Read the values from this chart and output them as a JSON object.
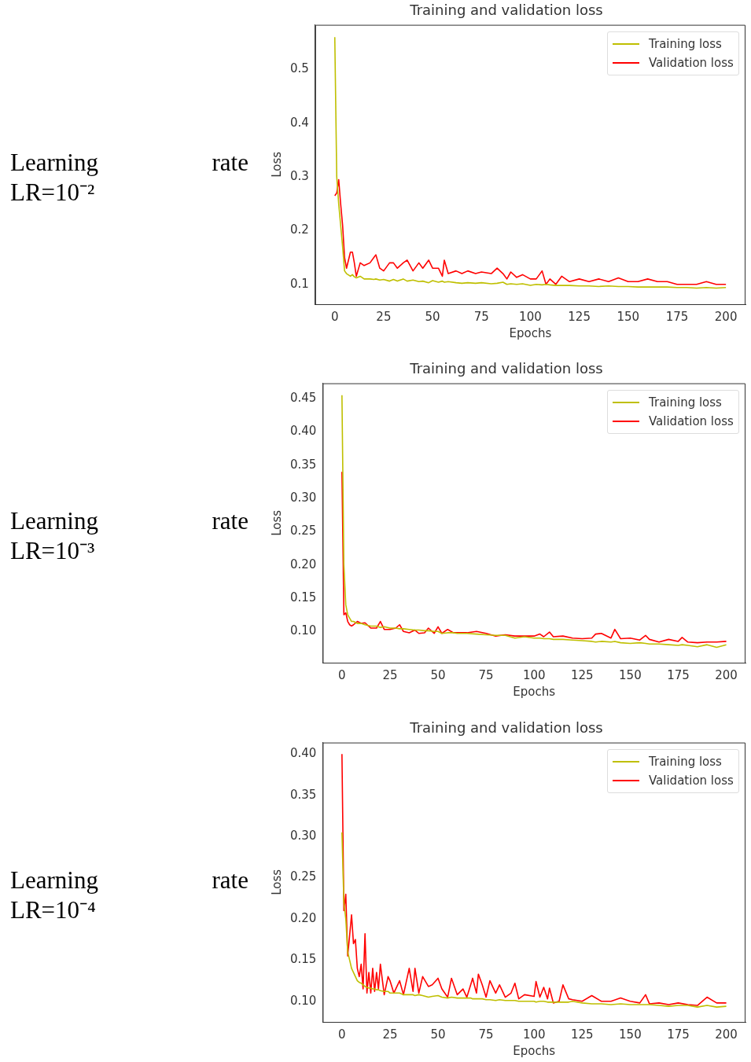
{
  "chart_data": [
    {
      "type": "line",
      "title": "Training and validation loss",
      "xlabel": "Epochs",
      "ylabel": "Loss",
      "annotations": [
        "Learning rate",
        "LR=10⁻²"
      ],
      "legend": "top right",
      "grid": false,
      "marker": "none",
      "x": [
        0,
        1,
        2,
        3,
        4,
        5,
        6,
        8,
        9,
        10,
        11,
        13,
        15,
        18,
        20,
        21,
        23,
        25,
        28,
        30,
        32,
        35,
        37,
        40,
        43,
        45,
        48,
        50,
        53,
        55,
        56,
        58,
        62,
        65,
        68,
        72,
        75,
        80,
        83,
        86,
        88,
        90,
        93,
        96,
        100,
        103,
        106,
        108,
        110,
        113,
        116,
        120,
        125,
        130,
        135,
        140,
        145,
        150,
        155,
        160,
        165,
        170,
        175,
        180,
        185,
        190,
        195,
        200
      ],
      "series": [
        {
          "name": "Training loss",
          "color": "#bfbf00",
          "values": [
            0.56,
            0.3,
            0.25,
            0.21,
            0.17,
            0.125,
            0.12,
            0.115,
            0.118,
            0.114,
            0.112,
            0.115,
            0.11,
            0.11,
            0.109,
            0.11,
            0.108,
            0.109,
            0.106,
            0.109,
            0.106,
            0.11,
            0.106,
            0.108,
            0.105,
            0.106,
            0.103,
            0.107,
            0.104,
            0.106,
            0.104,
            0.105,
            0.103,
            0.102,
            0.103,
            0.102,
            0.103,
            0.101,
            0.102,
            0.104,
            0.1,
            0.101,
            0.1,
            0.101,
            0.098,
            0.1,
            0.099,
            0.1,
            0.099,
            0.098,
            0.098,
            0.098,
            0.097,
            0.097,
            0.096,
            0.097,
            0.096,
            0.096,
            0.095,
            0.095,
            0.095,
            0.095,
            0.094,
            0.094,
            0.093,
            0.094,
            0.093,
            0.094
          ]
        },
        {
          "name": "Validation loss",
          "color": "#ff0000",
          "values": [
            0.265,
            0.27,
            0.295,
            0.25,
            0.21,
            0.15,
            0.13,
            0.16,
            0.16,
            0.14,
            0.115,
            0.14,
            0.135,
            0.14,
            0.15,
            0.155,
            0.13,
            0.125,
            0.14,
            0.14,
            0.13,
            0.14,
            0.145,
            0.125,
            0.14,
            0.13,
            0.145,
            0.13,
            0.13,
            0.115,
            0.145,
            0.12,
            0.125,
            0.12,
            0.125,
            0.12,
            0.123,
            0.12,
            0.13,
            0.12,
            0.11,
            0.123,
            0.113,
            0.118,
            0.11,
            0.11,
            0.125,
            0.1,
            0.11,
            0.1,
            0.115,
            0.105,
            0.11,
            0.105,
            0.11,
            0.105,
            0.112,
            0.105,
            0.105,
            0.11,
            0.105,
            0.105,
            0.1,
            0.1,
            0.1,
            0.105,
            0.1,
            0.1
          ]
        }
      ],
      "xlim": [
        -10,
        210
      ],
      "xticks": [
        0,
        25,
        50,
        75,
        100,
        125,
        150,
        175,
        200
      ],
      "ylim": [
        0.063,
        0.583
      ],
      "yticks": [
        0.1,
        0.2,
        0.3,
        0.4,
        0.5
      ]
    },
    {
      "type": "line",
      "title": "Training and validation loss",
      "xlabel": "Epochs",
      "ylabel": "Loss",
      "annotations": [
        "Learning rate",
        "LR=10⁻³"
      ],
      "legend": "top right",
      "grid": false,
      "marker": "none",
      "x": [
        0,
        1,
        2,
        3,
        4,
        5,
        6,
        8,
        10,
        12,
        15,
        18,
        20,
        22,
        25,
        28,
        30,
        32,
        35,
        38,
        40,
        43,
        45,
        48,
        50,
        52,
        55,
        58,
        60,
        65,
        70,
        75,
        80,
        85,
        90,
        95,
        100,
        103,
        105,
        108,
        110,
        115,
        120,
        125,
        130,
        132,
        135,
        140,
        142,
        145,
        150,
        155,
        158,
        160,
        165,
        170,
        175,
        177,
        180,
        185,
        190,
        195,
        200
      ],
      "series": [
        {
          "name": "Training loss",
          "color": "#bfbf00",
          "values": [
            0.455,
            0.2,
            0.14,
            0.125,
            0.12,
            0.115,
            0.115,
            0.112,
            0.112,
            0.11,
            0.108,
            0.108,
            0.106,
            0.107,
            0.105,
            0.105,
            0.104,
            0.104,
            0.103,
            0.102,
            0.102,
            0.101,
            0.101,
            0.1,
            0.1,
            0.097,
            0.098,
            0.098,
            0.097,
            0.097,
            0.096,
            0.095,
            0.094,
            0.094,
            0.09,
            0.092,
            0.09,
            0.09,
            0.089,
            0.089,
            0.088,
            0.088,
            0.087,
            0.086,
            0.085,
            0.084,
            0.085,
            0.084,
            0.085,
            0.083,
            0.082,
            0.083,
            0.082,
            0.081,
            0.081,
            0.08,
            0.079,
            0.08,
            0.079,
            0.077,
            0.08,
            0.076,
            0.08
          ]
        },
        {
          "name": "Validation loss",
          "color": "#ff0000",
          "values": [
            0.34,
            0.125,
            0.128,
            0.115,
            0.11,
            0.108,
            0.11,
            0.115,
            0.112,
            0.113,
            0.105,
            0.105,
            0.115,
            0.103,
            0.103,
            0.105,
            0.11,
            0.1,
            0.098,
            0.102,
            0.097,
            0.098,
            0.105,
            0.097,
            0.107,
            0.097,
            0.103,
            0.098,
            0.098,
            0.098,
            0.1,
            0.097,
            0.093,
            0.095,
            0.093,
            0.093,
            0.093,
            0.096,
            0.092,
            0.099,
            0.092,
            0.093,
            0.09,
            0.089,
            0.09,
            0.096,
            0.097,
            0.09,
            0.103,
            0.089,
            0.09,
            0.087,
            0.094,
            0.088,
            0.084,
            0.088,
            0.085,
            0.091,
            0.084,
            0.083,
            0.084,
            0.084,
            0.085
          ]
        }
      ],
      "xlim": [
        -10,
        210
      ],
      "xticks": [
        0,
        25,
        50,
        75,
        100,
        125,
        150,
        175,
        200
      ],
      "ylim": [
        0.053,
        0.473
      ],
      "yticks": [
        {
          "value": 0.1,
          "label": "0.10"
        },
        {
          "value": 0.15,
          "label": "0.15"
        },
        {
          "value": 0.2,
          "label": "0.20"
        },
        {
          "value": 0.25,
          "label": "0.25"
        },
        {
          "value": 0.3,
          "label": "0.30"
        },
        {
          "value": 0.35,
          "label": "0.35"
        },
        {
          "value": 0.4,
          "label": "0.40"
        },
        {
          "value": 0.45,
          "label": "0.45"
        }
      ]
    },
    {
      "type": "line",
      "title": "Training and validation loss",
      "xlabel": "Epochs",
      "ylabel": "Loss",
      "annotations": [
        "Learning rate",
        "LR=10⁻⁴"
      ],
      "legend": "top right",
      "grid": false,
      "marker": "none",
      "x": [
        0,
        1,
        2,
        3,
        4,
        5,
        6,
        7,
        8,
        9,
        10,
        11,
        12,
        13,
        14,
        15,
        16,
        17,
        18,
        19,
        20,
        22,
        24,
        25,
        27,
        30,
        32,
        35,
        37,
        38,
        40,
        42,
        45,
        47,
        50,
        52,
        55,
        57,
        60,
        63,
        65,
        67,
        68,
        70,
        71,
        73,
        75,
        77,
        80,
        82,
        85,
        88,
        90,
        92,
        95,
        100,
        101,
        103,
        105,
        107,
        108,
        110,
        113,
        115,
        118,
        120,
        125,
        130,
        135,
        140,
        145,
        150,
        155,
        158,
        160,
        165,
        170,
        175,
        180,
        185,
        190,
        195,
        200
      ],
      "series": [
        {
          "name": "Training loss",
          "color": "#bfbf00",
          "values": [
            0.305,
            0.22,
            0.2,
            0.16,
            0.15,
            0.14,
            0.135,
            0.13,
            0.125,
            0.123,
            0.122,
            0.12,
            0.118,
            0.117,
            0.116,
            0.116,
            0.115,
            0.115,
            0.114,
            0.114,
            0.113,
            0.112,
            0.112,
            0.11,
            0.11,
            0.11,
            0.108,
            0.108,
            0.108,
            0.107,
            0.108,
            0.107,
            0.105,
            0.106,
            0.107,
            0.105,
            0.104,
            0.105,
            0.104,
            0.104,
            0.104,
            0.104,
            0.103,
            0.103,
            0.103,
            0.103,
            0.102,
            0.102,
            0.101,
            0.102,
            0.101,
            0.101,
            0.101,
            0.1,
            0.1,
            0.1,
            0.099,
            0.1,
            0.1,
            0.099,
            0.099,
            0.099,
            0.099,
            0.099,
            0.099,
            0.1,
            0.098,
            0.097,
            0.097,
            0.096,
            0.097,
            0.096,
            0.096,
            0.096,
            0.096,
            0.095,
            0.094,
            0.095,
            0.095,
            0.093,
            0.095,
            0.093,
            0.094
          ]
        },
        {
          "name": "Validation loss",
          "color": "#ff0000",
          "values": [
            0.4,
            0.21,
            0.23,
            0.155,
            0.18,
            0.205,
            0.17,
            0.175,
            0.14,
            0.13,
            0.145,
            0.115,
            0.182,
            0.11,
            0.135,
            0.11,
            0.14,
            0.112,
            0.135,
            0.115,
            0.145,
            0.108,
            0.13,
            0.125,
            0.11,
            0.125,
            0.108,
            0.14,
            0.112,
            0.14,
            0.11,
            0.13,
            0.118,
            0.12,
            0.128,
            0.115,
            0.105,
            0.128,
            0.108,
            0.115,
            0.105,
            0.12,
            0.128,
            0.11,
            0.133,
            0.12,
            0.105,
            0.125,
            0.11,
            0.12,
            0.105,
            0.11,
            0.122,
            0.103,
            0.108,
            0.106,
            0.124,
            0.105,
            0.117,
            0.103,
            0.116,
            0.098,
            0.1,
            0.12,
            0.103,
            0.102,
            0.1,
            0.107,
            0.1,
            0.1,
            0.104,
            0.1,
            0.098,
            0.108,
            0.097,
            0.098,
            0.096,
            0.098,
            0.096,
            0.095,
            0.105,
            0.098,
            0.098
          ]
        }
      ],
      "xlim": [
        -10,
        210
      ],
      "xticks": [
        0,
        25,
        50,
        75,
        100,
        125,
        150,
        175,
        200
      ],
      "ylim": [
        0.075,
        0.414
      ],
      "yticks": [
        {
          "value": 0.1,
          "label": "0.10"
        },
        {
          "value": 0.15,
          "label": "0.15"
        },
        {
          "value": 0.2,
          "label": "0.20"
        },
        {
          "value": 0.25,
          "label": "0.25"
        },
        {
          "value": 0.3,
          "label": "0.30"
        },
        {
          "value": 0.35,
          "label": "0.35"
        },
        {
          "value": 0.4,
          "label": "0.40"
        }
      ]
    }
  ]
}
